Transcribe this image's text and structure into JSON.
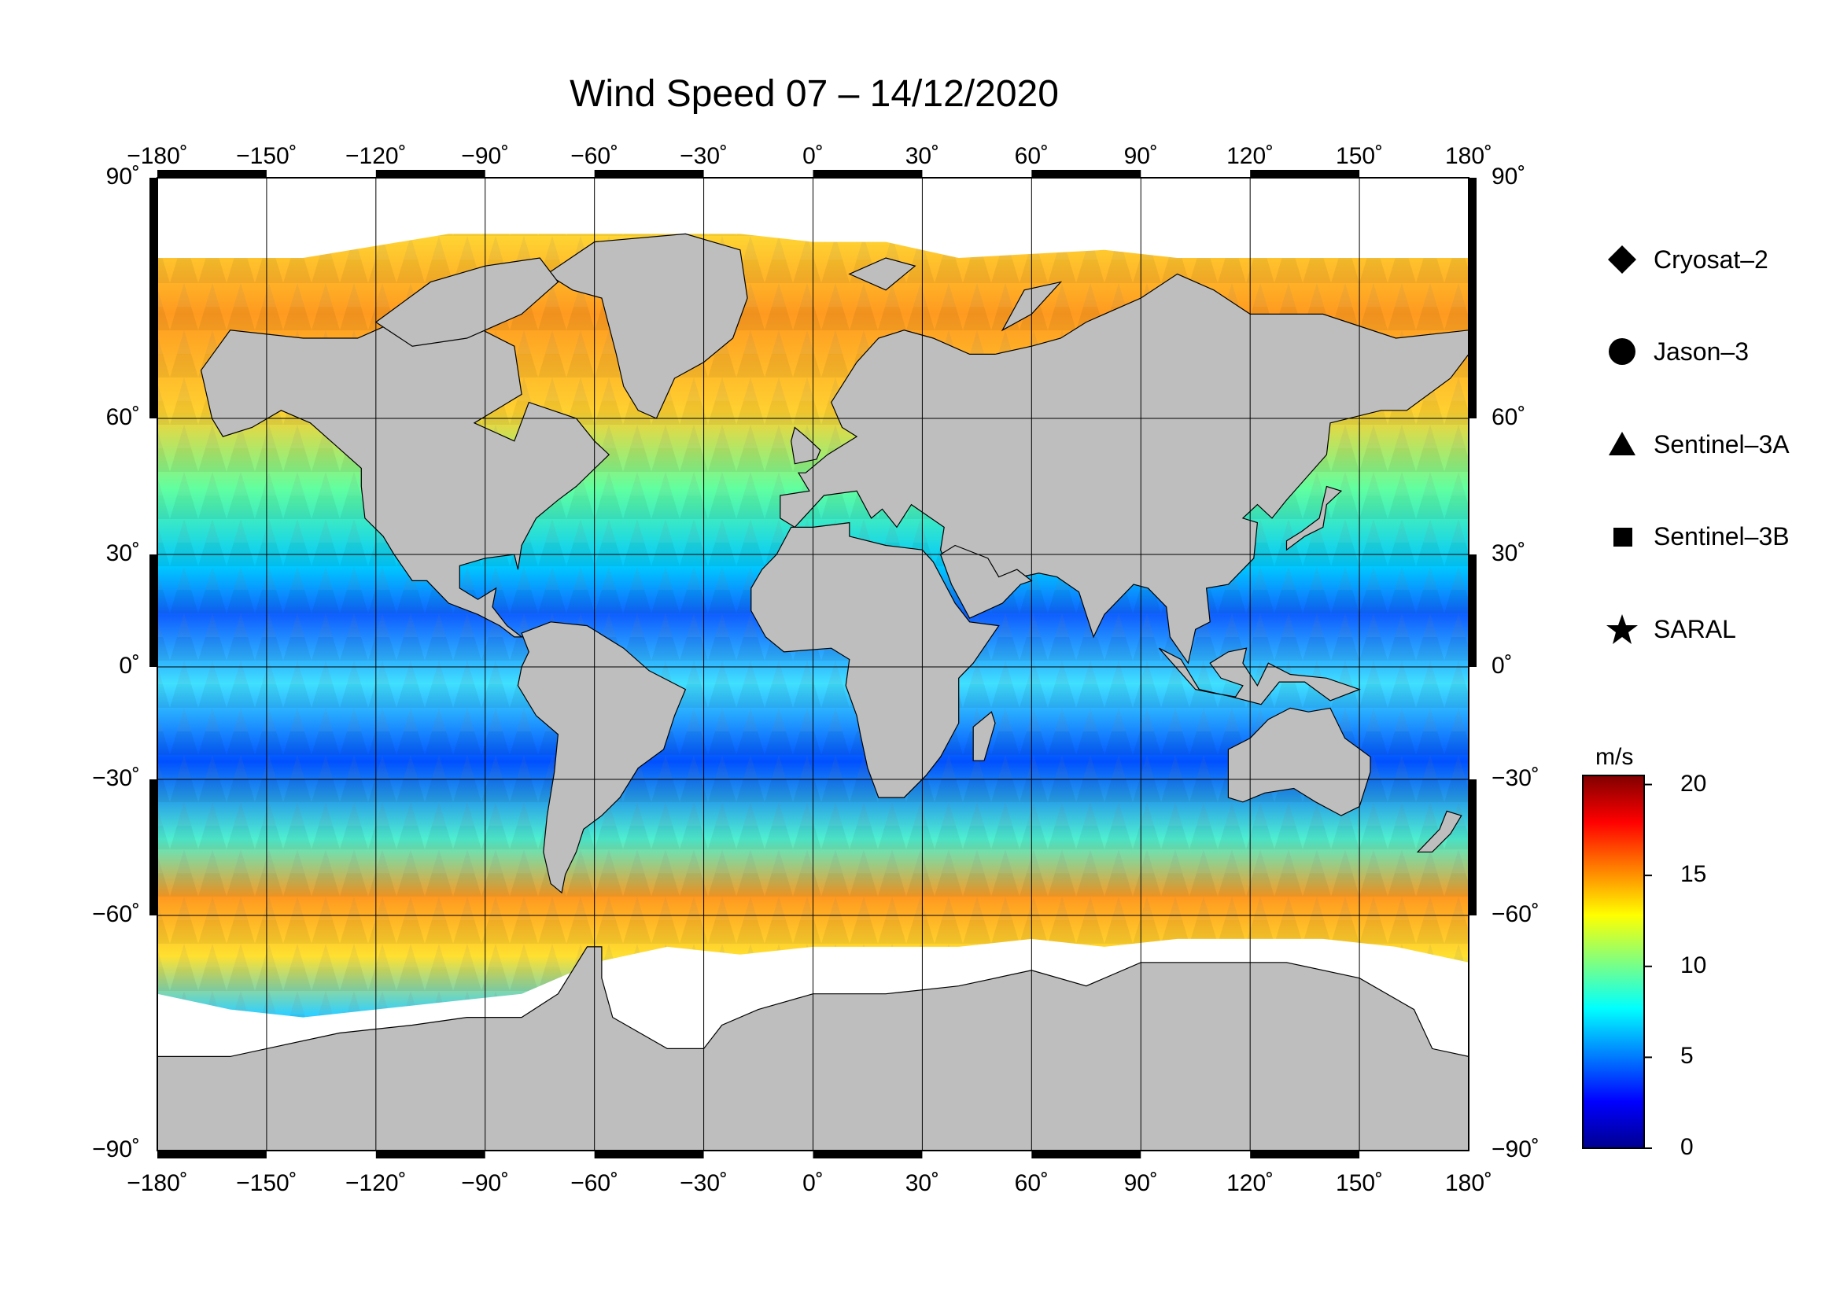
{
  "title": "Wind Speed 07 – 14/12/2020",
  "axes": {
    "lon_labels": [
      "−180˚",
      "−150˚",
      "−120˚",
      "−90˚",
      "−60˚",
      "−30˚",
      "0˚",
      "30˚",
      "60˚",
      "90˚",
      "120˚",
      "150˚",
      "180˚"
    ],
    "lat_labels_left": [
      "90˚",
      "60˚",
      "30˚",
      "0˚",
      "−30˚",
      "−60˚",
      "−90˚"
    ],
    "lat_labels_right": [
      "90˚",
      "60˚",
      "30˚",
      "0˚",
      "−30˚",
      "−60˚",
      "−90˚"
    ]
  },
  "map": {
    "projection": "Mercator",
    "lon_range": [
      -180,
      180
    ],
    "lat_range": [
      -90,
      90
    ],
    "graticule_step_deg": 30,
    "land_color": "#bebebe",
    "ice_color": "#ffffff"
  },
  "legend": {
    "items": [
      {
        "label": "Cryosat–2",
        "icon": "diamond-icon"
      },
      {
        "label": "Jason–3",
        "icon": "circle-icon"
      },
      {
        "label": "Sentinel–3A",
        "icon": "triangle-icon"
      },
      {
        "label": "Sentinel–3B",
        "icon": "square-icon"
      },
      {
        "label": "SARAL",
        "icon": "star-icon"
      }
    ]
  },
  "colorbar": {
    "unit": "m/s",
    "ticks": [
      "20",
      "15",
      "10",
      "5",
      "0"
    ],
    "range": [
      0,
      20.5
    ],
    "colors": [
      "#00008f",
      "#0000ff",
      "#0080ff",
      "#00ffff",
      "#80ff80",
      "#ffff00",
      "#ff8000",
      "#ff0000",
      "#800000"
    ]
  }
}
